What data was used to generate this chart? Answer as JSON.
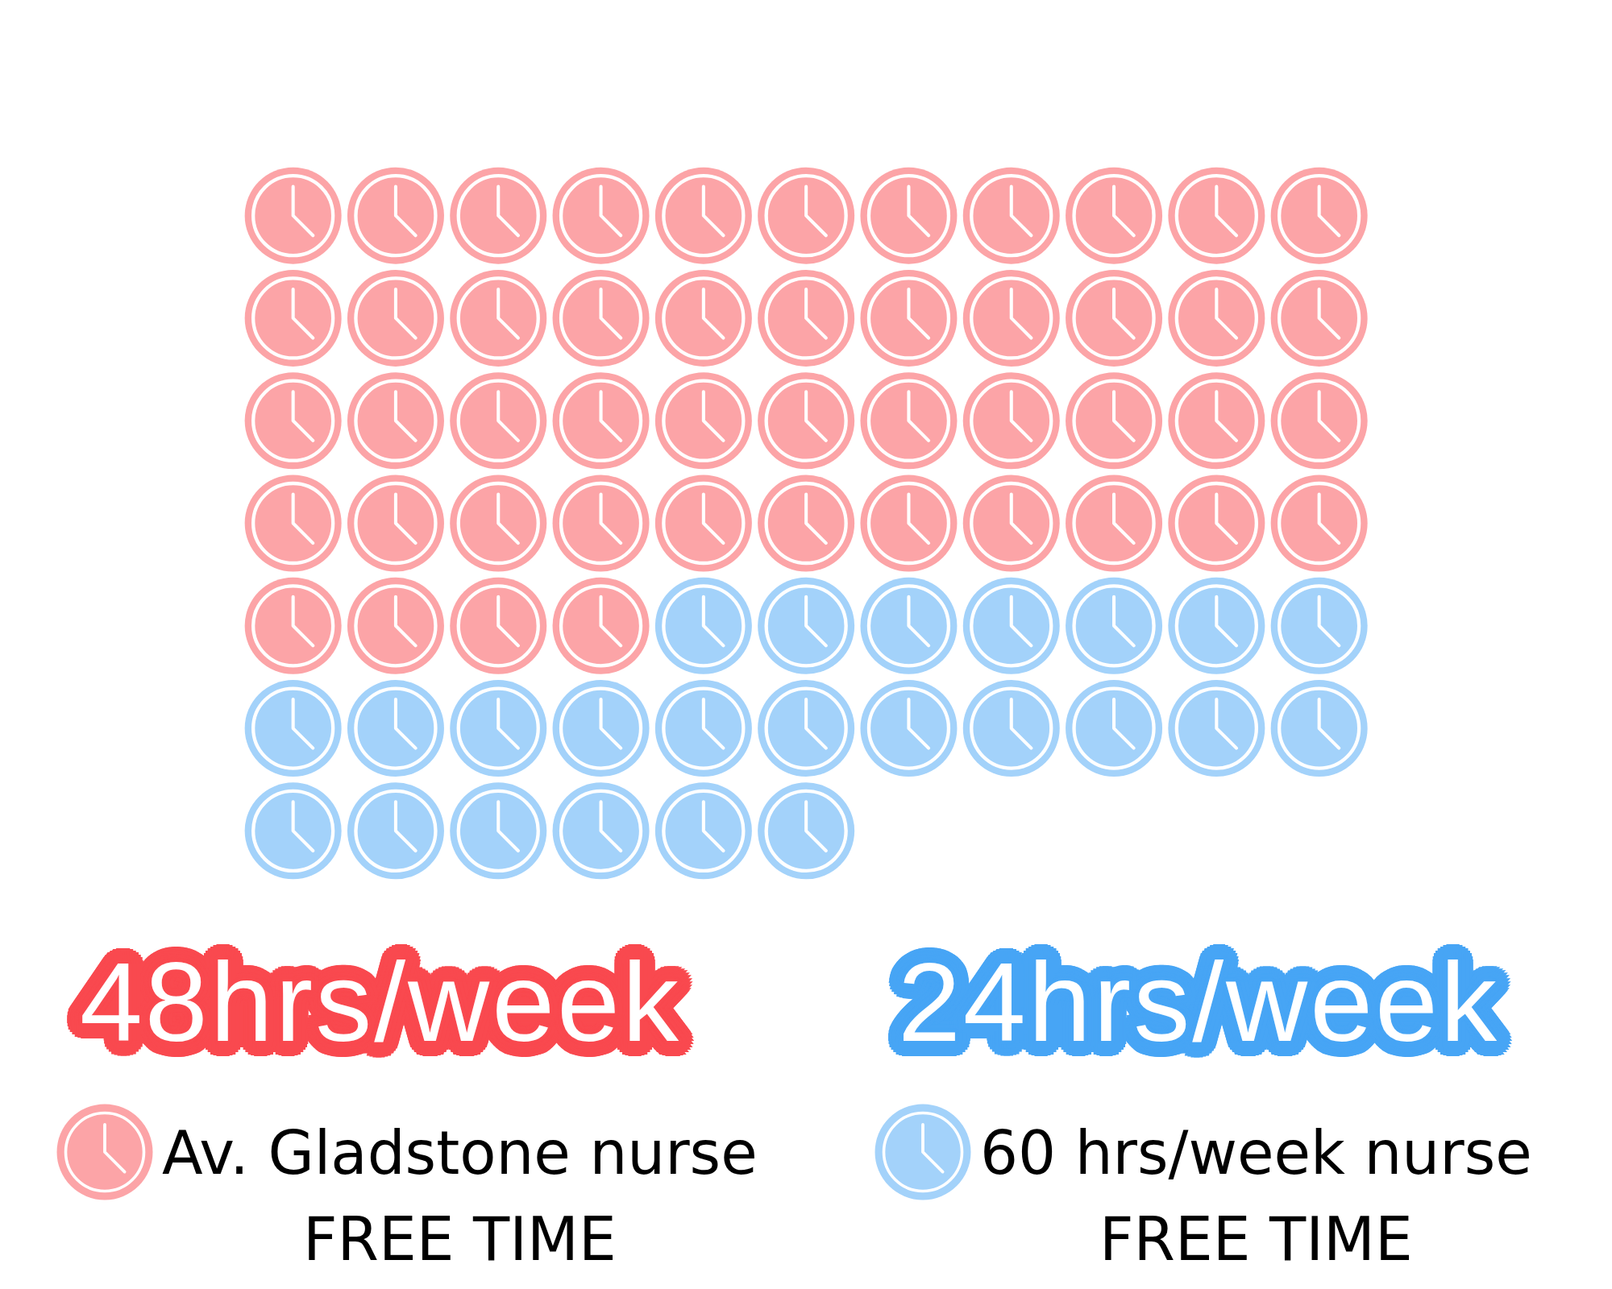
{
  "chart_data": {
    "type": "other",
    "legend": "bottom",
    "series": [
      {
        "name": "Av. Gladstone nurse\nFREE TIME",
        "color": "#fca4a7",
        "values": [
          48
        ],
        "value_labels": [
          "48hrs/week"
        ]
      },
      {
        "name": "60 hrs/week nurse\nFREE TIME",
        "color": "#a3d2fa",
        "values": [
          24
        ],
        "value_labels": [
          "24hrs/week"
        ]
      }
    ]
  }
}
